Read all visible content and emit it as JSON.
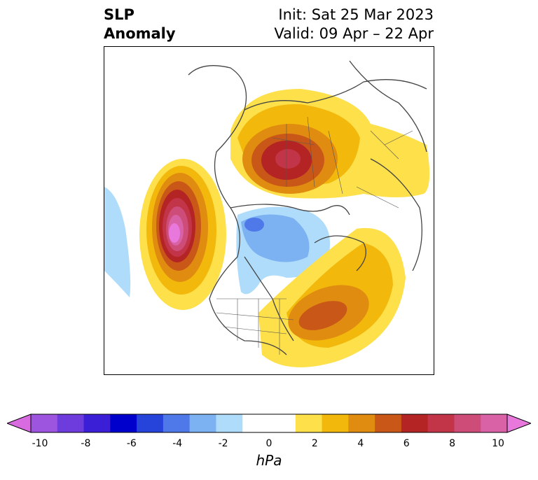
{
  "title": {
    "line1": "SLP",
    "line2": "Anomaly"
  },
  "init": "Init: Sat 25 Mar 2023",
  "valid": "Valid: 09 Apr – 22 Apr",
  "colorbar": {
    "unit": "hPa",
    "ticks": [
      "-10",
      "-8",
      "-6",
      "-4",
      "-2",
      "0",
      "2",
      "4",
      "6",
      "8",
      "10"
    ],
    "colors": [
      "#d86be0",
      "#9d55e0",
      "#6e3cdc",
      "#3b1fd6",
      "#0000cd",
      "#2643da",
      "#4f78e8",
      "#7cb2f2",
      "#aedcfa",
      "#ffffff",
      "#ffffff",
      "#fde04a",
      "#f3b80c",
      "#e08c10",
      "#c95818",
      "#b52424",
      "#c23448",
      "#cd4c78",
      "#d962a6",
      "#e878dc"
    ]
  },
  "map": {
    "features": [
      "negative anomaly North Pacific",
      "positive anomaly Arctic",
      "negative anomaly Canada",
      "positive anomaly western Atlantic"
    ]
  }
}
